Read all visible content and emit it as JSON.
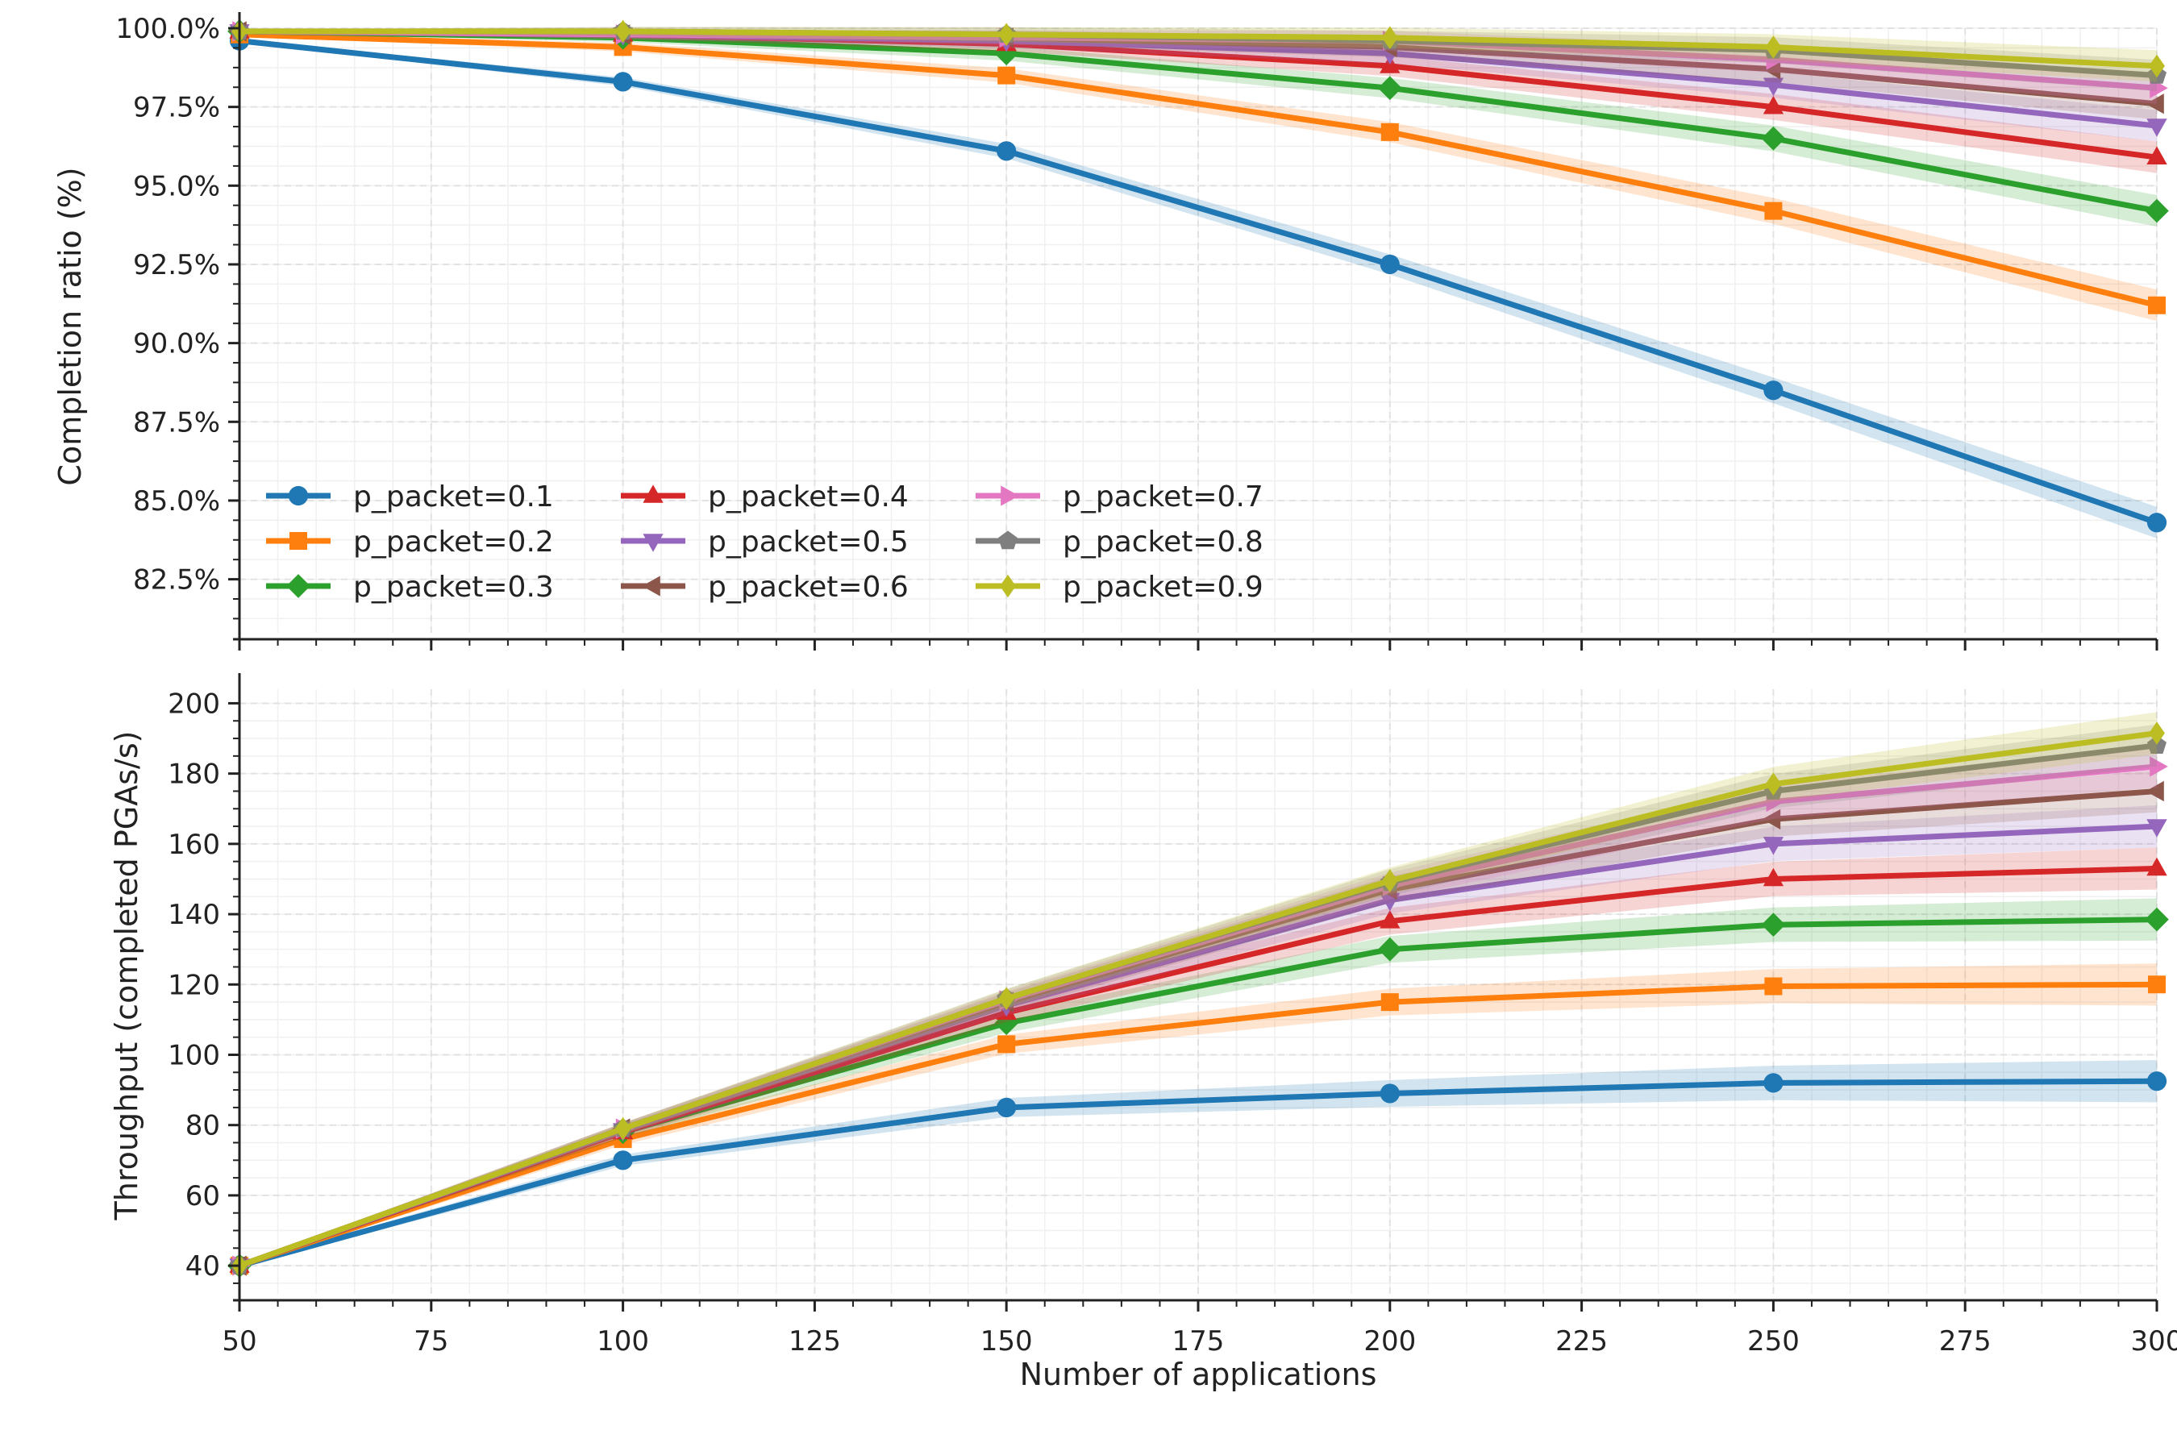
{
  "chart_data": [
    {
      "type": "line",
      "ylabel": "Completion ratio (%)",
      "xlim": [
        50,
        300
      ],
      "ylim": [
        80.8,
        100
      ],
      "yticks": [
        "82.5%",
        "85.0%",
        "87.5%",
        "90.0%",
        "92.5%",
        "95.0%",
        "97.5%",
        "100.0%"
      ],
      "ytick_values": [
        82.5,
        85.0,
        87.5,
        90.0,
        92.5,
        95.0,
        97.5,
        100.0
      ],
      "grid": true,
      "legend_position": "lower-left",
      "x": [
        50,
        100,
        150,
        200,
        250,
        300
      ],
      "series": [
        {
          "name": "p_packet=0.1",
          "color": "#1f77b4",
          "marker": "circle",
          "values": [
            99.6,
            98.3,
            96.1,
            92.5,
            88.5,
            84.3
          ]
        },
        {
          "name": "p_packet=0.2",
          "color": "#ff7f0e",
          "marker": "square",
          "values": [
            99.8,
            99.4,
            98.5,
            96.7,
            94.2,
            91.2
          ]
        },
        {
          "name": "p_packet=0.3",
          "color": "#2ca02c",
          "marker": "diamond",
          "values": [
            99.9,
            99.7,
            99.2,
            98.1,
            96.5,
            94.2
          ]
        },
        {
          "name": "p_packet=0.4",
          "color": "#d62728",
          "marker": "triangle-up",
          "values": [
            99.9,
            99.8,
            99.5,
            98.8,
            97.5,
            95.9
          ]
        },
        {
          "name": "p_packet=0.5",
          "color": "#9467bd",
          "marker": "triangle-down",
          "values": [
            99.9,
            99.8,
            99.6,
            99.2,
            98.2,
            96.9
          ]
        },
        {
          "name": "p_packet=0.6",
          "color": "#8c564b",
          "marker": "triangle-left",
          "values": [
            99.9,
            99.8,
            99.7,
            99.4,
            98.7,
            97.6
          ]
        },
        {
          "name": "p_packet=0.7",
          "color": "#e377c2",
          "marker": "triangle-right",
          "values": [
            99.9,
            99.8,
            99.7,
            99.6,
            99.0,
            98.1
          ]
        },
        {
          "name": "p_packet=0.8",
          "color": "#7f7f7f",
          "marker": "pentagon",
          "values": [
            99.9,
            99.9,
            99.8,
            99.6,
            99.3,
            98.5
          ]
        },
        {
          "name": "p_packet=0.9",
          "color": "#bcbd22",
          "marker": "thin-diamond",
          "values": [
            99.9,
            99.9,
            99.8,
            99.7,
            99.4,
            98.8
          ]
        }
      ]
    },
    {
      "type": "line",
      "xlabel": "Number of applications",
      "ylabel": "Throughput (completed PGAs/s)",
      "xlim": [
        50,
        300
      ],
      "ylim": [
        32,
        204
      ],
      "xticks": [
        "50",
        "75",
        "100",
        "125",
        "150",
        "175",
        "200",
        "225",
        "250",
        "275",
        "300"
      ],
      "xtick_values": [
        50,
        75,
        100,
        125,
        150,
        175,
        200,
        225,
        250,
        275,
        300
      ],
      "yticks": [
        "40",
        "60",
        "80",
        "100",
        "120",
        "140",
        "160",
        "180",
        "200"
      ],
      "ytick_values": [
        40,
        60,
        80,
        100,
        120,
        140,
        160,
        180,
        200
      ],
      "grid": true,
      "x": [
        50,
        100,
        150,
        200,
        250,
        300
      ],
      "series": [
        {
          "name": "p_packet=0.1",
          "color": "#1f77b4",
          "marker": "circle",
          "values": [
            40,
            70,
            85,
            89,
            92,
            92.5
          ]
        },
        {
          "name": "p_packet=0.2",
          "color": "#ff7f0e",
          "marker": "square",
          "values": [
            40,
            76,
            103,
            115,
            119.5,
            120
          ]
        },
        {
          "name": "p_packet=0.3",
          "color": "#2ca02c",
          "marker": "diamond",
          "values": [
            40,
            78,
            109,
            130,
            137,
            138.5
          ]
        },
        {
          "name": "p_packet=0.4",
          "color": "#d62728",
          "marker": "triangle-up",
          "values": [
            40,
            78,
            112,
            138,
            150,
            153
          ]
        },
        {
          "name": "p_packet=0.5",
          "color": "#9467bd",
          "marker": "triangle-down",
          "values": [
            40,
            78.5,
            114,
            144,
            160,
            165
          ]
        },
        {
          "name": "p_packet=0.6",
          "color": "#8c564b",
          "marker": "triangle-left",
          "values": [
            40,
            79,
            115,
            147,
            167,
            175
          ]
        },
        {
          "name": "p_packet=0.7",
          "color": "#e377c2",
          "marker": "triangle-right",
          "values": [
            40,
            79,
            115.5,
            148,
            172,
            182
          ]
        },
        {
          "name": "p_packet=0.8",
          "color": "#7f7f7f",
          "marker": "pentagon",
          "values": [
            40,
            79,
            116,
            149,
            175,
            188
          ]
        },
        {
          "name": "p_packet=0.9",
          "color": "#bcbd22",
          "marker": "thin-diamond",
          "values": [
            40,
            79,
            116,
            149.5,
            177,
            191.5
          ]
        }
      ]
    }
  ]
}
